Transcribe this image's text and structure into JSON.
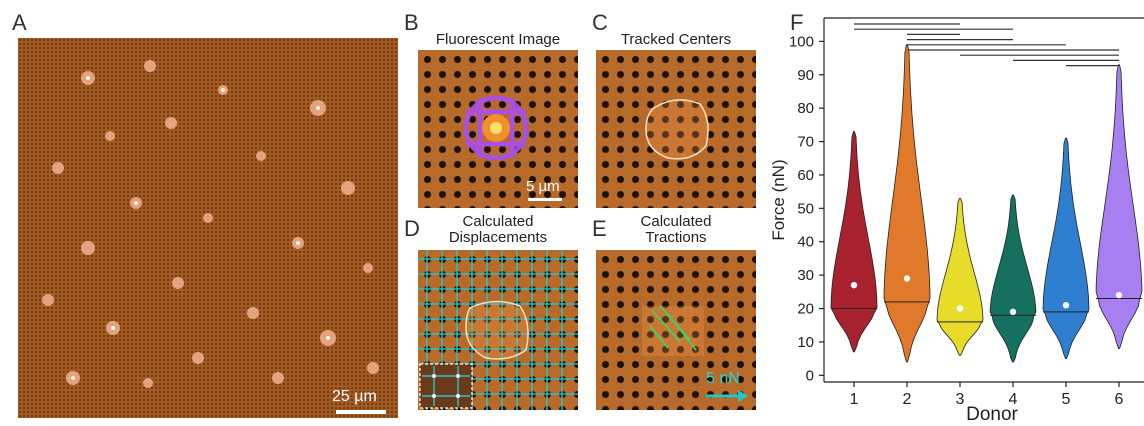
{
  "panels": {
    "a": {
      "letter": "A",
      "scale_label": "25 µm"
    },
    "b": {
      "letter": "B",
      "title": "Fluorescent Image",
      "scale_label": "5 µm"
    },
    "c": {
      "letter": "C",
      "title": "Tracked Centers"
    },
    "d": {
      "letter": "D",
      "title_line1": "Calculated",
      "title_line2": "Displacements"
    },
    "e": {
      "letter": "E",
      "title_line1": "Calculated",
      "title_line2": "Tractions",
      "scale_label": "5 nN"
    },
    "f": {
      "letter": "F"
    }
  },
  "colors": {
    "substrate": "#b86a2a",
    "violin_1": "#a8212f",
    "violin_2": "#e07a2a",
    "violin_3": "#e8dc2a",
    "violin_4": "#15705f",
    "violin_5": "#2f7fd0",
    "violin_6": "#a77ff0",
    "displacement_arrows": "#22c8c8",
    "traction_arrows": "#3fd06a"
  },
  "chart_data": {
    "type": "violin",
    "xlabel": "Donor",
    "ylabel": "Force (nN)",
    "categories": [
      "1",
      "2",
      "3",
      "4",
      "5",
      "6"
    ],
    "ylim": [
      -2,
      107
    ],
    "yticks": [
      0,
      10,
      20,
      30,
      40,
      50,
      60,
      70,
      80,
      90,
      100
    ],
    "series": [
      {
        "category": "1",
        "min": 7,
        "max": 73,
        "mean": 27,
        "median": 20
      },
      {
        "category": "2",
        "min": 4,
        "max": 99,
        "mean": 29,
        "median": 22
      },
      {
        "category": "3",
        "min": 6,
        "max": 53,
        "mean": 20,
        "median": 16
      },
      {
        "category": "4",
        "min": 4,
        "max": 54,
        "mean": 19,
        "median": 18
      },
      {
        "category": "5",
        "min": 5,
        "max": 71,
        "mean": 21,
        "median": 19
      },
      {
        "category": "6",
        "min": 8,
        "max": 93,
        "mean": 24,
        "median": 23
      }
    ],
    "significance_pairs": [
      [
        1,
        3
      ],
      [
        1,
        4
      ],
      [
        2,
        3
      ],
      [
        2,
        4
      ],
      [
        2,
        5
      ],
      [
        2,
        6
      ],
      [
        3,
        6
      ],
      [
        4,
        6
      ],
      [
        5,
        6
      ]
    ]
  }
}
